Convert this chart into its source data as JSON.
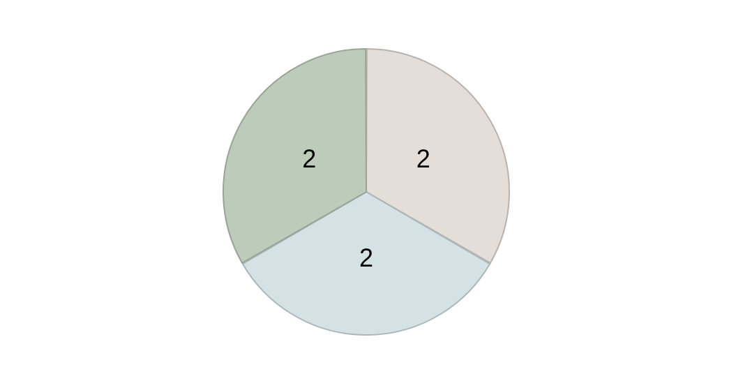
{
  "chart_data": {
    "type": "pie",
    "categories": [
      null,
      null,
      null
    ],
    "values": [
      2,
      2,
      2
    ],
    "colors": [
      "#e5ddd7",
      "#d4e1e5",
      "#bdcbba"
    ],
    "data_labels": true
  }
}
